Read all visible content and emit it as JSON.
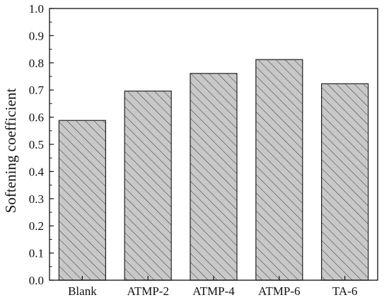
{
  "chart_data": {
    "type": "bar",
    "title": "",
    "xlabel": "",
    "ylabel": "Softening coefficient",
    "categories": [
      "Blank",
      "ATMP-2",
      "ATMP-4",
      "ATMP-6",
      "TA-6"
    ],
    "values": [
      0.588,
      0.696,
      0.761,
      0.812,
      0.723
    ],
    "ylim": [
      0.0,
      1.0
    ],
    "yticks": [
      "0.0",
      "0.1",
      "0.2",
      "0.3",
      "0.4",
      "0.5",
      "0.6",
      "0.7",
      "0.8",
      "0.9",
      "1.0"
    ],
    "grid": false,
    "legend": "none",
    "bar_fill": "#c8c8c8",
    "bar_pattern": "diagonal-hatch",
    "bar_stroke": "#222222"
  }
}
